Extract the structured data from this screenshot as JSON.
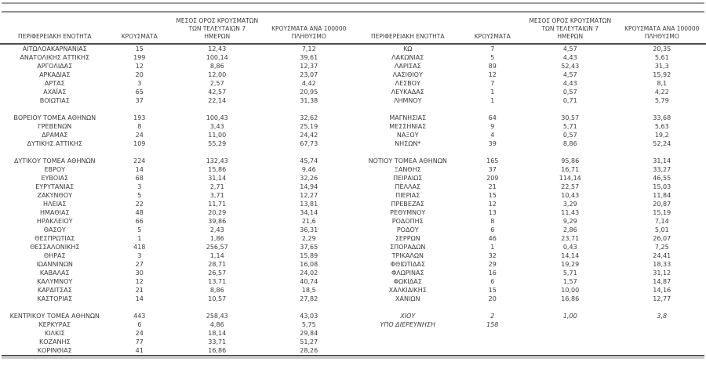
{
  "header": {
    "col_region": "ΠΕΡΙΦΕΡΕΙΑΚΗ ΕΝΟΤΗΤΑ",
    "col_cases": "ΚΡΟΥΣΜΑΤΑ",
    "col_avg7_lines": [
      "ΜΕΣΟΣ ΟΡΟΣ ΚΡΟΥΣΜΑΤΩΝ",
      "ΤΩΝ ΤΕΛΕΥΤΑΙΩΝ 7",
      "ΗΜΕΡΩΝ"
    ],
    "col_per100k_lines": [
      "ΚΡΟΥΣΜΑΤΑ ΑΝΑ 100000",
      "ΠΛΗΘΥΣΜΟ"
    ]
  },
  "colors": {
    "text": "#3b3b3b",
    "top_rule": "#9d9d9d",
    "header_rule": "#4d4d4d",
    "bottom_rule": "#565656",
    "bottom_shadow": "#c6c6c6"
  },
  "left_table": {
    "rows": [
      {
        "region": "ΑΙΤΩΛΟΑΚΑΡΝΑΝΙΑΣ",
        "cases": "15",
        "avg7": "12,43",
        "per100k": "7,12"
      },
      {
        "region": "ΑΝΑΤΟΛΙΚΗΣ ΑΤΤΙΚΗΣ",
        "cases": "199",
        "avg7": "100,14",
        "per100k": "39,61"
      },
      {
        "region": "ΑΡΓΟΛΙΔΑΣ",
        "cases": "12",
        "avg7": "8,86",
        "per100k": "12,37"
      },
      {
        "region": "ΑΡΚΑΔΙΑΣ",
        "cases": "20",
        "avg7": "12,00",
        "per100k": "23,07"
      },
      {
        "region": "ΑΡΤΑΣ",
        "cases": "3",
        "avg7": "2,57",
        "per100k": "4,42"
      },
      {
        "region": "ΑΧΑΪΑΣ",
        "cases": "65",
        "avg7": "42,57",
        "per100k": "20,95"
      },
      {
        "region": "ΒΟΙΩΤΙΑΣ",
        "cases": "37",
        "avg7": "22,14",
        "per100k": "31,38"
      },
      {
        "spacer": true
      },
      {
        "region": "ΒΟΡΕΙΟΥ ΤΟΜΕΑ ΑΘΗΝΩΝ",
        "cases": "193",
        "avg7": "100,43",
        "per100k": "32,62"
      },
      {
        "region": "ΓΡΕΒΕΝΩΝ",
        "cases": "8",
        "avg7": "3,43",
        "per100k": "25,19"
      },
      {
        "region": "ΔΡΑΜΑΣ",
        "cases": "24",
        "avg7": "11,00",
        "per100k": "24,42"
      },
      {
        "region": "ΔΥΤΙΚΗΣ ΑΤΤΙΚΗΣ",
        "cases": "109",
        "avg7": "55,29",
        "per100k": "67,73"
      },
      {
        "spacer": true
      },
      {
        "region": "ΔΥΤΙΚΟΥ ΤΟΜΕΑ ΑΘΗΝΩΝ",
        "cases": "224",
        "avg7": "132,43",
        "per100k": "45,74"
      },
      {
        "region": "ΕΒΡΟΥ",
        "cases": "14",
        "avg7": "15,86",
        "per100k": "9,46"
      },
      {
        "region": "ΕΥΒΟΙΑΣ",
        "cases": "68",
        "avg7": "31,14",
        "per100k": "32,26"
      },
      {
        "region": "ΕΥΡΥΤΑΝΙΑΣ",
        "cases": "3",
        "avg7": "2,71",
        "per100k": "14,94"
      },
      {
        "region": "ΖΑΚΥΝΘΟΥ",
        "cases": "5",
        "avg7": "3,71",
        "per100k": "12,27"
      },
      {
        "region": "ΗΛΕΙΑΣ",
        "cases": "22",
        "avg7": "11,71",
        "per100k": "13,81"
      },
      {
        "region": "ΗΜΑΘΙΑΣ",
        "cases": "48",
        "avg7": "20,29",
        "per100k": "34,14"
      },
      {
        "region": "ΗΡΑΚΛΕΙΟΥ",
        "cases": "66",
        "avg7": "39,86",
        "per100k": "21,6"
      },
      {
        "region": "ΘΑΣΟΥ",
        "cases": "5",
        "avg7": "2,43",
        "per100k": "36,31"
      },
      {
        "region": "ΘΕΣΠΡΩΤΙΑΣ",
        "cases": "1",
        "avg7": "1,86",
        "per100k": "2,29"
      },
      {
        "region": "ΘΕΣΣΑΛΟΝΙΚΗΣ",
        "cases": "418",
        "avg7": "256,57",
        "per100k": "37,65"
      },
      {
        "region": "ΘΗΡΑΣ",
        "cases": "3",
        "avg7": "1,14",
        "per100k": "15,89"
      },
      {
        "region": "ΙΩΑΝΝΙΝΩΝ",
        "cases": "27",
        "avg7": "28,71",
        "per100k": "16,08"
      },
      {
        "region": "ΚΑΒΑΛΑΣ",
        "cases": "30",
        "avg7": "26,57",
        "per100k": "24,02"
      },
      {
        "region": "ΚΑΛΥΜΝΟΥ",
        "cases": "12",
        "avg7": "13,71",
        "per100k": "40,74"
      },
      {
        "region": "ΚΑΡΔΙΤΣΑΣ",
        "cases": "21",
        "avg7": "8,86",
        "per100k": "18,5"
      },
      {
        "region": "ΚΑΣΤΟΡΙΑΣ",
        "cases": "14",
        "avg7": "10,57",
        "per100k": "27,82"
      },
      {
        "spacer": true
      },
      {
        "region": "ΚΕΝΤΡΙΚΟΥ ΤΟΜΕΑ ΑΘΗΝΩΝ",
        "cases": "443",
        "avg7": "258,43",
        "per100k": "43,03"
      },
      {
        "region": "ΚΕΡΚΥΡΑΣ",
        "cases": "6",
        "avg7": "4,86",
        "per100k": "5,75"
      },
      {
        "region": "ΚΙΛΚΙΣ",
        "cases": "24",
        "avg7": "18,14",
        "per100k": "29,84"
      },
      {
        "region": "ΚΟΖΑΝΗΣ",
        "cases": "77",
        "avg7": "33,71",
        "per100k": "51,27"
      },
      {
        "region": "ΚΟΡΙΝΘΙΑΣ",
        "cases": "41",
        "avg7": "16,86",
        "per100k": "28,26"
      }
    ]
  },
  "right_table": {
    "rows": [
      {
        "region": "ΚΩ",
        "cases": "7",
        "avg7": "4,57",
        "per100k": "20,35"
      },
      {
        "region": "ΛΑΚΩΝΙΑΣ",
        "cases": "5",
        "avg7": "4,43",
        "per100k": "5,61"
      },
      {
        "region": "ΛΑΡΙΣΑΣ",
        "cases": "89",
        "avg7": "52,43",
        "per100k": "31,3"
      },
      {
        "region": "ΛΑΣΙΘΙΟΥ",
        "cases": "12",
        "avg7": "4,57",
        "per100k": "15,92"
      },
      {
        "region": "ΛΕΣΒΟΥ",
        "cases": "7",
        "avg7": "4,43",
        "per100k": "8,1"
      },
      {
        "region": "ΛΕΥΚΑΔΑΣ",
        "cases": "1",
        "avg7": "0,57",
        "per100k": "4,22"
      },
      {
        "region": "ΛΗΜΝΟΥ",
        "cases": "1",
        "avg7": "0,71",
        "per100k": "5,79"
      },
      {
        "spacer": true
      },
      {
        "region": "ΜΑΓΝΗΣΙΑΣ",
        "cases": "64",
        "avg7": "30,57",
        "per100k": "33,68"
      },
      {
        "region": "ΜΕΣΣΗΝΙΑΣ",
        "cases": "9",
        "avg7": "5,71",
        "per100k": "5,63"
      },
      {
        "region": "ΝΑΞΟΥ",
        "cases": "4",
        "avg7": "0,57",
        "per100k": "19,2"
      },
      {
        "region": "ΝΗΣΩΝ*",
        "cases": "39",
        "avg7": "8,86",
        "per100k": "52,24"
      },
      {
        "spacer": true
      },
      {
        "region": "ΝΟΤΙΟΥ ΤΟΜΕΑ ΑΘΗΝΩΝ",
        "cases": "165",
        "avg7": "95,86",
        "per100k": "31,14"
      },
      {
        "region": "ΞΑΝΘΗΣ",
        "cases": "37",
        "avg7": "16,71",
        "per100k": "33,27"
      },
      {
        "region": "ΠΕΙΡΑΙΩΣ",
        "cases": "209",
        "avg7": "114,14",
        "per100k": "46,55"
      },
      {
        "region": "ΠΕΛΛΑΣ",
        "cases": "21",
        "avg7": "22,57",
        "per100k": "15,03"
      },
      {
        "region": "ΠΙΕΡΙΑΣ",
        "cases": "15",
        "avg7": "10,43",
        "per100k": "11,84"
      },
      {
        "region": "ΠΡΕΒΕΖΑΣ",
        "cases": "12",
        "avg7": "3,29",
        "per100k": "20,87"
      },
      {
        "region": "ΡΕΘΥΜΝΟΥ",
        "cases": "13",
        "avg7": "11,43",
        "per100k": "15,19"
      },
      {
        "region": "ΡΟΔΟΠΗΣ",
        "cases": "8",
        "avg7": "9,29",
        "per100k": "7,14"
      },
      {
        "region": "ΡΟΔΟΥ",
        "cases": "6",
        "avg7": "2,86",
        "per100k": "5,01"
      },
      {
        "region": "ΣΕΡΡΩΝ",
        "cases": "46",
        "avg7": "23,71",
        "per100k": "26,07"
      },
      {
        "region": "ΣΠΟΡΑΔΩΝ",
        "cases": "1",
        "avg7": "0,43",
        "per100k": "7,25"
      },
      {
        "region": "ΤΡΙΚΑΛΩΝ",
        "cases": "32",
        "avg7": "14,14",
        "per100k": "24,41"
      },
      {
        "region": "ΦΘΙΩΤΙΔΑΣ",
        "cases": "29",
        "avg7": "19,29",
        "per100k": "18,33"
      },
      {
        "region": "ΦΛΩΡΙΝΑΣ",
        "cases": "16",
        "avg7": "5,71",
        "per100k": "31,12"
      },
      {
        "region": "ΦΩΚΙΔΑΣ",
        "cases": "6",
        "avg7": "1,57",
        "per100k": "14,87"
      },
      {
        "region": "ΧΑΛΚΙΔΙΚΗΣ",
        "cases": "15",
        "avg7": "10,00",
        "per100k": "14,16"
      },
      {
        "region": "ΧΑΝΙΩΝ",
        "cases": "20",
        "avg7": "16,86",
        "per100k": "12,77"
      },
      {
        "spacer": true
      },
      {
        "region": "ΧΙΟΥ",
        "cases": "2",
        "avg7": "1,00",
        "per100k": "3,8",
        "italic": true
      },
      {
        "region": "ΥΠΟ ΔΙΕΡΕΥΝΗΣΗ",
        "cases": "158",
        "avg7": "",
        "per100k": "",
        "italic": true
      }
    ]
  }
}
